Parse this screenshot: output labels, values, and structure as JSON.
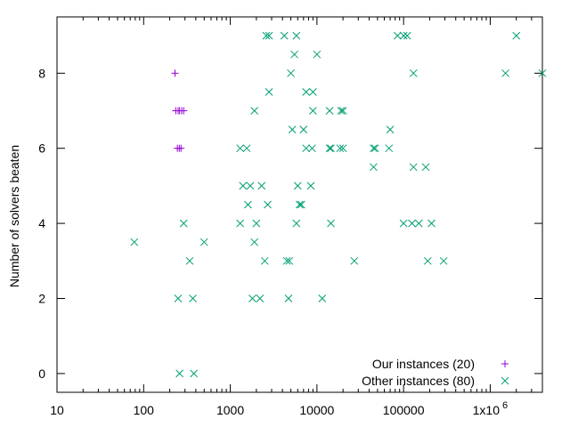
{
  "chart_data": {
    "type": "scatter",
    "title": "",
    "xlabel": "",
    "ylabel": "Number of solvers beaten",
    "x_scale": "log",
    "xlim": [
      10,
      4000000
    ],
    "ylim": [
      -0.5,
      9.5
    ],
    "x_ticks": [
      10,
      100,
      1000,
      10000,
      100000,
      1000000
    ],
    "x_tick_labels": [
      "10",
      "100",
      "1000",
      "10000",
      "100000",
      "1x10"
    ],
    "x_tick_superscript": "6",
    "y_ticks": [
      0,
      2,
      4,
      6,
      8
    ],
    "y_tick_labels": [
      "0",
      "2",
      "4",
      "6",
      "8"
    ],
    "grid": false,
    "legend_position": "bottom-right",
    "series": [
      {
        "name": "Our instances (20)",
        "marker": "plus",
        "color": "#9400d3",
        "points": [
          [
            230,
            8
          ],
          [
            235,
            7
          ],
          [
            250,
            7
          ],
          [
            260,
            7
          ],
          [
            275,
            7
          ],
          [
            290,
            7
          ],
          [
            245,
            6
          ],
          [
            258,
            6
          ],
          [
            270,
            6
          ]
        ]
      },
      {
        "name": "Other instances (80)",
        "marker": "x",
        "color": "#009e73",
        "points": [
          [
            2600,
            9
          ],
          [
            2800,
            9
          ],
          [
            4200,
            9
          ],
          [
            5800,
            9
          ],
          [
            85000,
            9
          ],
          [
            100000,
            9
          ],
          [
            110000,
            9
          ],
          [
            2000000,
            9
          ],
          [
            5500,
            8.5
          ],
          [
            10000,
            8.5
          ],
          [
            5000,
            8
          ],
          [
            130000,
            8
          ],
          [
            1500000,
            8
          ],
          [
            4000000,
            8
          ],
          [
            2800,
            7.5
          ],
          [
            7500,
            7.5
          ],
          [
            9000,
            7.5
          ],
          [
            1900,
            7
          ],
          [
            9000,
            7
          ],
          [
            14000,
            7
          ],
          [
            19000,
            7
          ],
          [
            20000,
            7
          ],
          [
            5200,
            6.5
          ],
          [
            7000,
            6.5
          ],
          [
            70000,
            6.5
          ],
          [
            1300,
            6
          ],
          [
            1550,
            6
          ],
          [
            7500,
            6
          ],
          [
            8800,
            6
          ],
          [
            14000,
            6
          ],
          [
            14500,
            6
          ],
          [
            18500,
            6
          ],
          [
            20000,
            6
          ],
          [
            45000,
            6
          ],
          [
            47000,
            6
          ],
          [
            68000,
            6
          ],
          [
            45000,
            5.5
          ],
          [
            130000,
            5.5
          ],
          [
            180000,
            5.5
          ],
          [
            1400,
            5
          ],
          [
            1700,
            5
          ],
          [
            2300,
            5
          ],
          [
            6000,
            5
          ],
          [
            8500,
            5
          ],
          [
            1600,
            4.5
          ],
          [
            2700,
            4.5
          ],
          [
            6300,
            4.5
          ],
          [
            6600,
            4.5
          ],
          [
            290,
            4
          ],
          [
            1300,
            4
          ],
          [
            2000,
            4
          ],
          [
            5800,
            4
          ],
          [
            14500,
            4
          ],
          [
            100000,
            4
          ],
          [
            125000,
            4
          ],
          [
            150000,
            4
          ],
          [
            210000,
            4
          ],
          [
            78,
            3.5
          ],
          [
            500,
            3.5
          ],
          [
            1900,
            3.5
          ],
          [
            340,
            3
          ],
          [
            2500,
            3
          ],
          [
            4500,
            3
          ],
          [
            4800,
            3
          ],
          [
            27000,
            3
          ],
          [
            190000,
            3
          ],
          [
            290000,
            3
          ],
          [
            250,
            2
          ],
          [
            370,
            2
          ],
          [
            1800,
            2
          ],
          [
            2200,
            2
          ],
          [
            4700,
            2
          ],
          [
            11500,
            2
          ],
          [
            260,
            0
          ],
          [
            380,
            0
          ]
        ]
      }
    ]
  }
}
